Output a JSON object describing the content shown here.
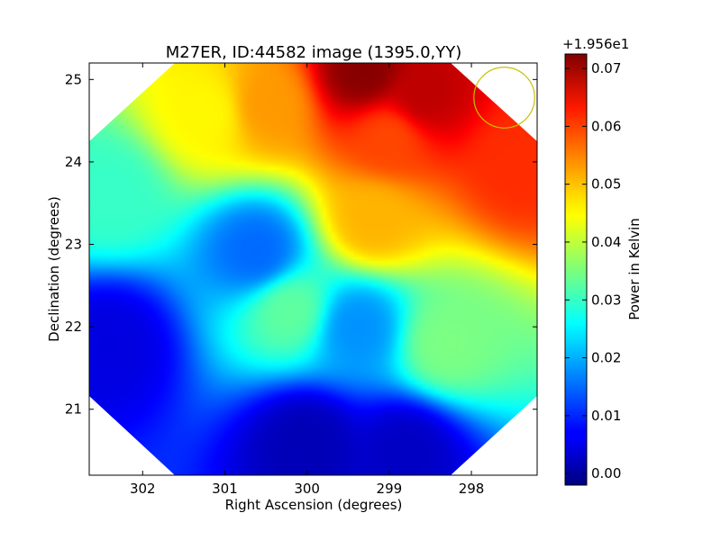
{
  "chart_data": {
    "type": "heatmap",
    "title": "M27ER, ID:44582 image (1395.0,YY)",
    "xlabel": "Right Ascension (degrees)",
    "ylabel": "Declination (degrees)",
    "xlim": [
      302.65,
      297.2
    ],
    "ylim": [
      20.2,
      25.2
    ],
    "x_reversed": true,
    "x_ticks": [
      302,
      301,
      300,
      299,
      298
    ],
    "y_ticks": [
      21,
      22,
      23,
      24,
      25
    ],
    "grid": false,
    "colormap": "jet",
    "colorbar": {
      "label": "Power in Kelvin",
      "offset_label": "+1.956e1",
      "min": -0.002,
      "max": 0.0725,
      "ticks": [
        "0.00",
        "0.01",
        "0.02",
        "0.03",
        "0.04",
        "0.05",
        "0.06",
        "0.07"
      ]
    },
    "beam_circle": {
      "ra": 297.6,
      "dec": 24.78,
      "radius_deg": 0.37,
      "color": "#c8c000"
    },
    "field_value_centers": [
      {
        "ra": 299.3,
        "dec": 25.1,
        "value": 0.072
      },
      {
        "ra": 298.6,
        "dec": 24.8,
        "value": 0.068
      },
      {
        "ra": 297.4,
        "dec": 24.0,
        "value": 0.06
      },
      {
        "ra": 299.0,
        "dec": 24.3,
        "value": 0.058
      },
      {
        "ra": 300.5,
        "dec": 24.7,
        "value": 0.052
      },
      {
        "ra": 299.2,
        "dec": 23.3,
        "value": 0.05
      },
      {
        "ra": 301.2,
        "dec": 24.6,
        "value": 0.045
      },
      {
        "ra": 302.4,
        "dec": 23.6,
        "value": 0.03
      },
      {
        "ra": 300.6,
        "dec": 22.9,
        "value": 0.015
      },
      {
        "ra": 299.4,
        "dec": 22.0,
        "value": 0.018
      },
      {
        "ra": 300.2,
        "dec": 22.2,
        "value": 0.033
      },
      {
        "ra": 298.3,
        "dec": 21.8,
        "value": 0.035
      },
      {
        "ra": 302.4,
        "dec": 21.8,
        "value": 0.005
      },
      {
        "ra": 300.0,
        "dec": 20.6,
        "value": 0.002
      },
      {
        "ra": 298.8,
        "dec": 20.5,
        "value": 0.003
      }
    ]
  }
}
